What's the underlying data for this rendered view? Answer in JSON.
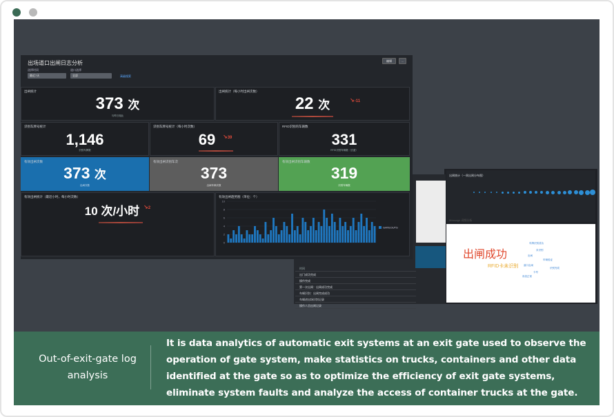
{
  "dashboard": {
    "title": "出场道口出闸日志分析",
    "filters": [
      {
        "label": "选择时间",
        "value": "最近7天"
      },
      {
        "label": "道口选择",
        "value": "全部"
      }
    ],
    "link": "高级搜索",
    "buttons": [
      "编辑",
      "..."
    ],
    "panels": {
      "p1": {
        "label": "出闸统计",
        "value": "373",
        "unit": "次",
        "sub": "与昨日相比"
      },
      "p2": {
        "label": "出闸统计（每小时出闸次数）",
        "value": "22",
        "unit": "次",
        "delta": "-11"
      },
      "p3": {
        "label": "识别车牌号统计",
        "value": "1,146",
        "sub": "识别车牌数"
      },
      "p4": {
        "label": "识别车牌号统计（每小时次数）",
        "value": "69",
        "delta": "39"
      },
      "p5": {
        "label": "RFID识别的车辆数",
        "value": "331",
        "sub": "RFID识别车辆数（去重）"
      },
      "p6": {
        "label": "有效出闸次数",
        "value": "373",
        "unit": "次",
        "sub": "出闸次数"
      },
      "p7": {
        "label": "有效出闸识别车次",
        "value": "373",
        "sub": "出闸车辆次数"
      },
      "p8": {
        "label": "有效出闸识别车辆数",
        "value": "319",
        "sub": "识别车辆数"
      },
      "p9": {
        "label": "有效出闸统计（最近小时，每小时次数）",
        "value": "10",
        "unit": "次/小时",
        "delta": "2"
      },
      "p10": {
        "label": "有效出闸趋势图（单位：个）",
        "legend": "GATEOUTS"
      }
    }
  },
  "popups": {
    "list_title": "时间",
    "list_items": [
      "出门成功完成",
      "操作完成",
      "第一次出闸：出闸成功完成",
      "车辆识别：出闸完成成功",
      "车辆进出场识别记录",
      "操作人员出闸记录"
    ],
    "bubble_title": "出闸统计（一周出闸分布图）",
    "wordcloud_title": "Message 词频分析",
    "word_big": "出闸成功",
    "word_mid": "RFID卡未识别",
    "word_small": [
      "车牌识别成功",
      "未识别",
      "出闸",
      "车辆验证",
      "道口出闸",
      "识别完成",
      "卡号",
      "系统正常"
    ]
  },
  "chart_data": {
    "type": "bar",
    "title": "有效出闸趋势图（单位：个）",
    "legend": [
      "GATEOUTS"
    ],
    "ylim": [
      0,
      10
    ],
    "yticks": [
      0,
      2,
      4,
      6,
      8,
      10
    ],
    "series": [
      {
        "name": "GATEOUTS",
        "values": [
          2,
          1,
          3,
          2,
          4,
          2,
          1,
          3,
          2,
          2,
          4,
          3,
          2,
          1,
          5,
          2,
          3,
          6,
          4,
          2,
          3,
          5,
          4,
          2,
          7,
          3,
          4,
          2,
          6,
          5,
          3,
          4,
          6,
          3,
          5,
          4,
          8,
          6,
          4,
          7,
          5,
          3,
          6,
          4,
          5,
          3,
          4,
          6,
          3,
          5,
          7,
          4,
          6,
          3,
          5,
          4
        ]
      }
    ]
  },
  "caption": {
    "title": "Out-of-exit-gate log analysis",
    "text": "It is data analytics of automatic exit systems at an exit gate used to observe the operation of gate system, make statistics on trucks, containers and other data identified at the gate so as to optimize the efficiency of exit gate systems, eliminate system faults and analyze the access of container trucks at the gate."
  }
}
